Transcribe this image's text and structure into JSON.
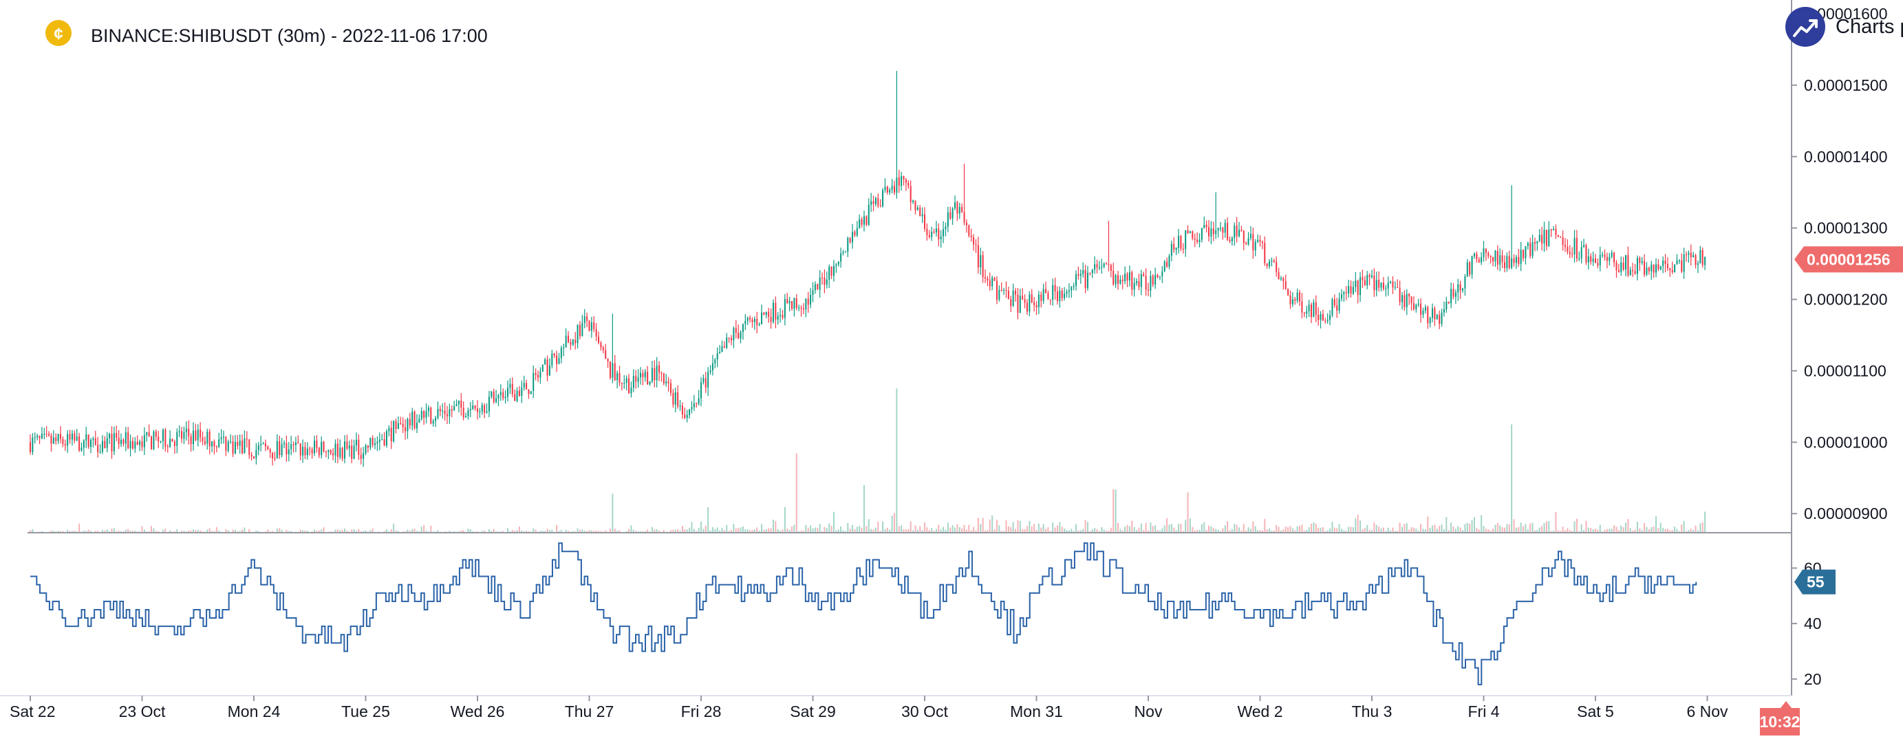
{
  "header": {
    "title": "BINANCE:SHIBUSDT (30m) - 2022-11-06 17:00",
    "logo_icon": "coin-icon",
    "brand_text": "Charts p",
    "brand_icon": "trend-up-icon"
  },
  "colors": {
    "up": "#26a69a",
    "up_candle": "#089981",
    "down": "#f23645",
    "up_volume": "#a5d6c8",
    "down_volume": "#f7b4b8",
    "rsi_line": "#2962a8",
    "last_price_tag": "#ef6c6c",
    "rsi_tag": "#2a6f9a",
    "time_tag": "#ef6c6c",
    "brand": "#2f3d9c",
    "coin": "#f0b90b"
  },
  "chart_data": {
    "type": "candlestick",
    "symbol": "BINANCE:SHIBUSDT",
    "interval": "30m",
    "price_axis": {
      "ylim": [
        8.8e-06,
        1.6e-05
      ],
      "ticks": [
        "0.00000900",
        "0.00001000",
        "0.00001100",
        "0.00001200",
        "0.00001300",
        "0.00001400",
        "0.00001500",
        "0.00001600"
      ]
    },
    "x_ticks": [
      "Sat 22",
      "23 Oct",
      "Mon 24",
      "Tue 25",
      "Wed 26",
      "Thu 27",
      "Fri 28",
      "Sat 29",
      "30 Oct",
      "Mon 31",
      "Nov",
      "Wed 2",
      "Thu 3",
      "Fri 4",
      "Sat 5",
      "6 Nov"
    ],
    "price_path": {
      "x_days": [
        0,
        0.5,
        1,
        1.5,
        2,
        2.5,
        3,
        3.3,
        3.6,
        4,
        4.5,
        5,
        5.2,
        5.4,
        5.6,
        5.9,
        6.3,
        6.6,
        7,
        7.4,
        7.8,
        8.1,
        8.3,
        8.6,
        8.9,
        9.2,
        9.6,
        10,
        10.3,
        10.6,
        11,
        11.3,
        11.6,
        12,
        12.3,
        12.6,
        13,
        13.3,
        13.6,
        14,
        14.5,
        14.9
      ],
      "close": [
        1e-05,
        1e-05,
        1e-05,
        1.01e-05,
        9.9e-06,
        9.9e-06,
        9.9e-06,
        1.02e-05,
        1.04e-05,
        1.05e-05,
        1.08e-05,
        1.17e-05,
        1.1e-05,
        1.08e-05,
        1.1e-05,
        1.04e-05,
        1.15e-05,
        1.18e-05,
        1.2e-05,
        1.3e-05,
        1.37e-05,
        1.28e-05,
        1.33e-05,
        1.22e-05,
        1.19e-05,
        1.21e-05,
        1.24e-05,
        1.22e-05,
        1.28e-05,
        1.3e-05,
        1.28e-05,
        1.2e-05,
        1.18e-05,
        1.23e-05,
        1.2e-05,
        1.17e-05,
        1.27e-05,
        1.25e-05,
        1.29e-05,
        1.26e-05,
        1.24e-05,
        1.256e-05
      ]
    },
    "spikes": [
      {
        "x_day": 7.75,
        "high": 1.52e-05
      },
      {
        "x_day": 8.35,
        "high": 1.39e-05
      },
      {
        "x_day": 13.25,
        "high": 1.36e-05
      },
      {
        "x_day": 10.6,
        "high": 1.35e-05
      },
      {
        "x_day": 9.65,
        "high": 1.31e-05
      },
      {
        "x_day": 5.2,
        "high": 1.18e-05
      }
    ],
    "volume_spikes": [
      {
        "x_day": 7.75,
        "rel": 1.0
      },
      {
        "x_day": 6.85,
        "rel": 0.55
      },
      {
        "x_day": 13.25,
        "rel": 0.75
      },
      {
        "x_day": 7.45,
        "rel": 0.33
      },
      {
        "x_day": 9.7,
        "rel": 0.3
      },
      {
        "x_day": 10.35,
        "rel": 0.28
      },
      {
        "x_day": 5.2,
        "rel": 0.27
      }
    ],
    "last_price": "0.00001256",
    "last_price_value": 1.256e-05,
    "rsi": {
      "ylim": [
        15,
        72
      ],
      "ticks": [
        "20",
        "40",
        "60"
      ],
      "last_value": "55",
      "path": {
        "x_days": [
          0,
          0.4,
          0.8,
          1.2,
          1.6,
          2,
          2.4,
          2.8,
          3.2,
          3.6,
          3.9,
          4.4,
          4.8,
          5.1,
          5.4,
          5.8,
          6.1,
          6.5,
          6.8,
          7.2,
          7.6,
          8.0,
          8.4,
          8.8,
          9.1,
          9.5,
          9.9,
          10.3,
          10.7,
          11.1,
          11.5,
          11.9,
          12.3,
          12.7,
          13.0,
          13.3,
          13.7,
          14.0,
          14.4,
          14.8,
          14.9
        ],
        "values": [
          52,
          42,
          46,
          36,
          43,
          60,
          38,
          33,
          52,
          50,
          62,
          44,
          68,
          42,
          33,
          36,
          56,
          50,
          57,
          47,
          63,
          45,
          62,
          38,
          56,
          66,
          50,
          43,
          49,
          42,
          48,
          46,
          64,
          30,
          22,
          48,
          62,
          49,
          56,
          52,
          55
        ]
      }
    },
    "time_tag": "10:32"
  }
}
